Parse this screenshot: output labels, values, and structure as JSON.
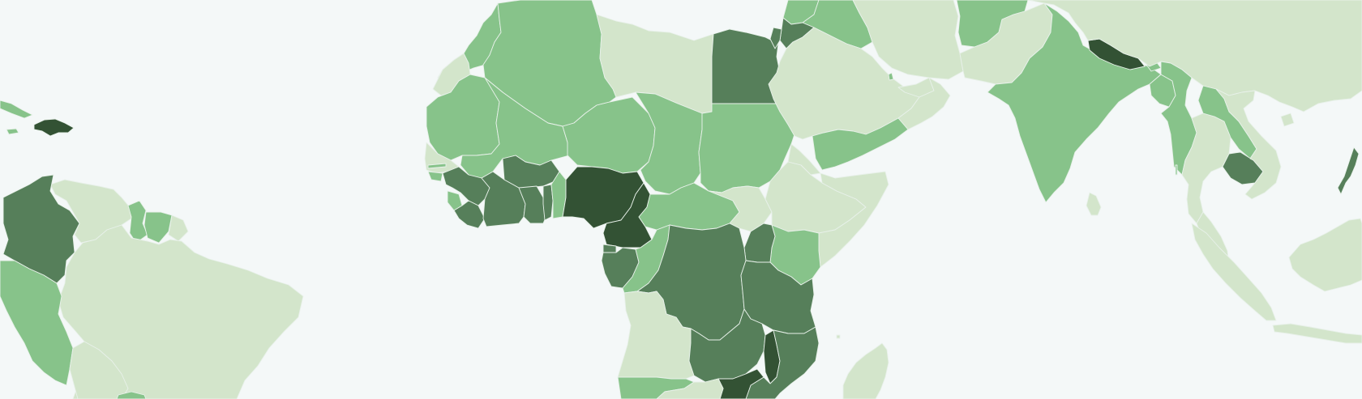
{
  "map": {
    "background": "#f4f8f8",
    "legend_shown": false,
    "color_scale": {
      "level_1": "#d3e5cb",
      "level_2": "#87c38a",
      "level_3": "#567f5a",
      "level_4": "#335234"
    },
    "regions": {
      "americas": {
        "hispaniola": 4,
        "colombia": 3,
        "venezuela": 1,
        "guyana": 2,
        "suriname": 2,
        "french_guiana": 1,
        "brazil": 1,
        "peru": 2,
        "bolivia": 1,
        "cuba": 2
      },
      "africa": {
        "morocco": 2,
        "algeria": 2,
        "western_sahara": 1,
        "mauritania": 2,
        "mali": 2,
        "niger": 2,
        "libya": 1,
        "egypt": 3,
        "chad": 2,
        "sudan": 2,
        "senegal": 1,
        "guinea": 3,
        "sierra_leone": 2,
        "liberia": 3,
        "cote_divoire": 3,
        "burkina_faso": 3,
        "ghana": 3,
        "togo": 3,
        "benin": 2,
        "nigeria": 4,
        "cameroon": 4,
        "central_african_republic": 2,
        "south_sudan": 1,
        "ethiopia": 1,
        "somalia": 1,
        "eritrea": 1,
        "kenya": 2,
        "uganda": 3,
        "gabon": 3,
        "congo": 2,
        "dr_congo": 3,
        "tanzania": 3,
        "angola": 1,
        "zambia": 3,
        "malawi": 4,
        "mozambique": 3,
        "zimbabwe": 4,
        "namibia": 2,
        "botswana": 1,
        "madagascar": 1
      },
      "middle_east_asia": {
        "saudi_arabia": 1,
        "yemen": 2,
        "oman": 1,
        "jordan": 3,
        "iraq": 2,
        "syria": 2,
        "iran": 1,
        "afghanistan": 2,
        "pakistan": 1,
        "india": 2,
        "nepal": 4,
        "bangladesh": 2,
        "myanmar": 2,
        "china": 1,
        "laos": 2,
        "thailand": 1,
        "cambodia": 3,
        "vietnam": 1,
        "malaysia": 1,
        "indonesia": 1,
        "philippines": 3,
        "sri_lanka": 1
      }
    }
  }
}
